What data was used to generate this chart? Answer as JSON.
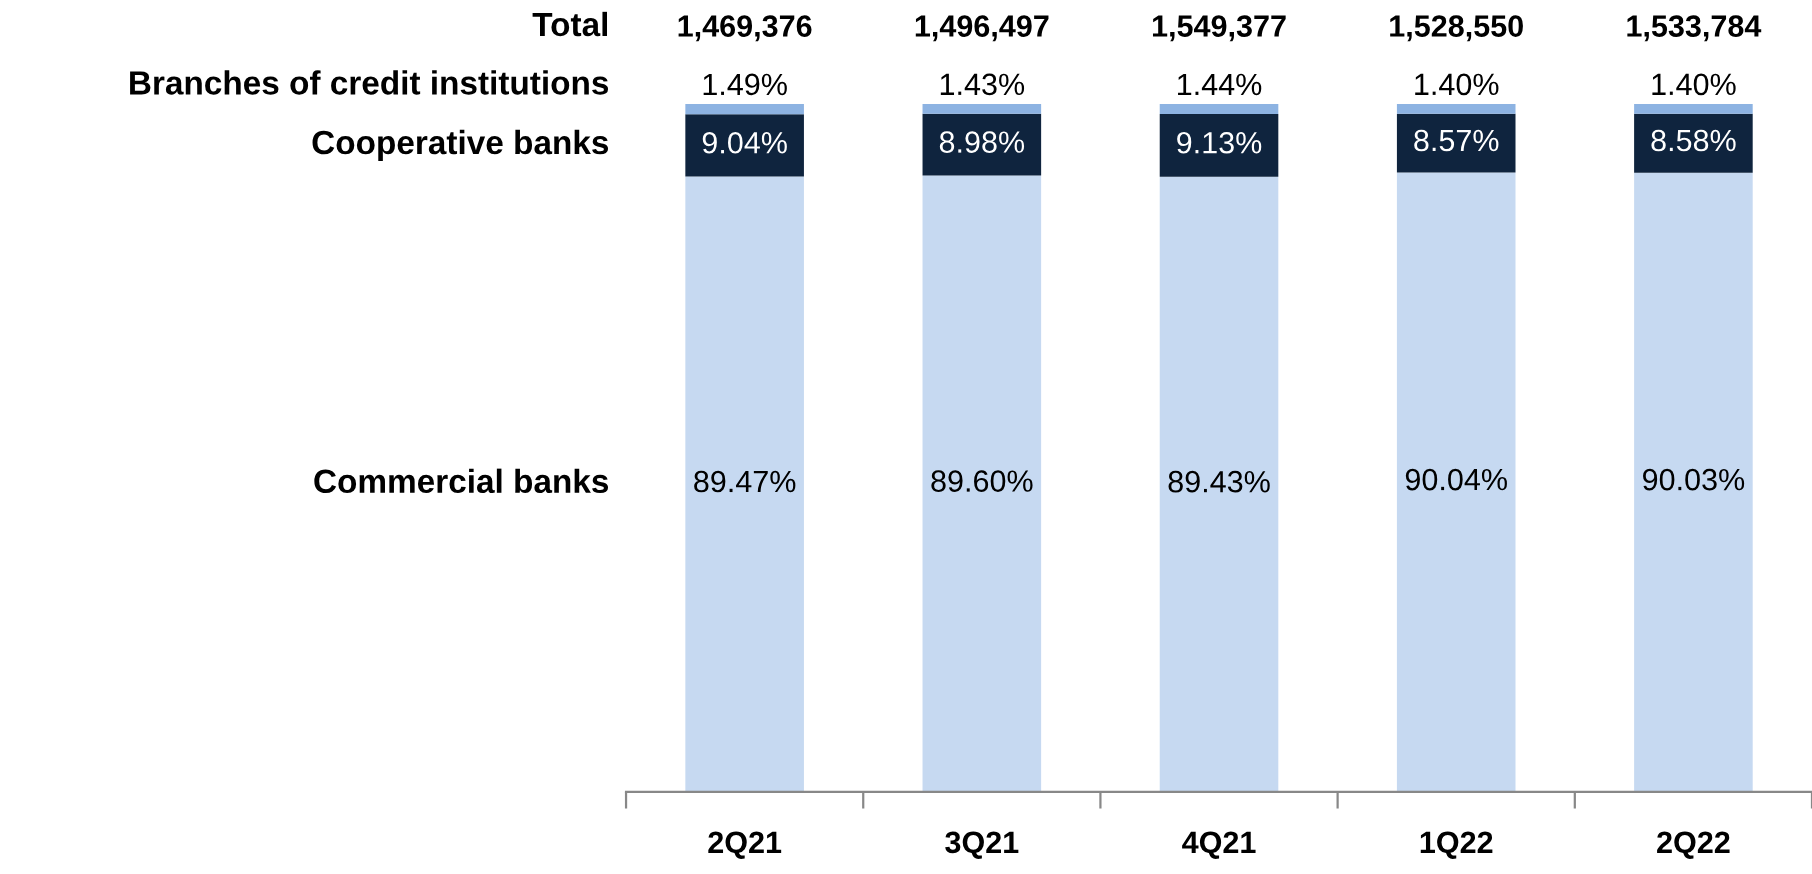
{
  "chart_data": {
    "type": "bar",
    "stacked": true,
    "categories": [
      "2Q21",
      "3Q21",
      "4Q21",
      "1Q22",
      "2Q22"
    ],
    "series": [
      {
        "name": "Commercial banks",
        "color": "#c6d9f1",
        "values": [
          89.47,
          89.6,
          89.43,
          90.04,
          90.03
        ],
        "value_labels": [
          "89.47%",
          "89.60%",
          "89.43%",
          "90.04%",
          "90.03%"
        ]
      },
      {
        "name": "Cooperative banks",
        "color": "#0f243e",
        "values": [
          9.04,
          8.98,
          9.13,
          8.57,
          8.58
        ],
        "value_labels": [
          "9.04%",
          "8.98%",
          "9.13%",
          "8.57%",
          "8.58%"
        ]
      },
      {
        "name": "Branches of credit institutions",
        "color": "#8db3e2",
        "values": [
          1.49,
          1.43,
          1.44,
          1.4,
          1.4
        ],
        "value_labels": [
          "1.49%",
          "1.43%",
          "1.44%",
          "1.40%",
          "1.40%"
        ]
      }
    ],
    "annotations": [
      "Total",
      {
        "text": "1,469,376",
        "x": "2Q21",
        "y": 100
      },
      {
        "text": "1,496,497",
        "x": "3Q21",
        "y": 100
      },
      {
        "text": "1,549,377",
        "x": "4Q21",
        "y": 100
      },
      {
        "text": "1,528,550",
        "x": "1Q22",
        "y": 100
      },
      {
        "text": "1,533,784",
        "x": "2Q22",
        "y": 100
      }
    ],
    "legend": false,
    "grid": false
  }
}
